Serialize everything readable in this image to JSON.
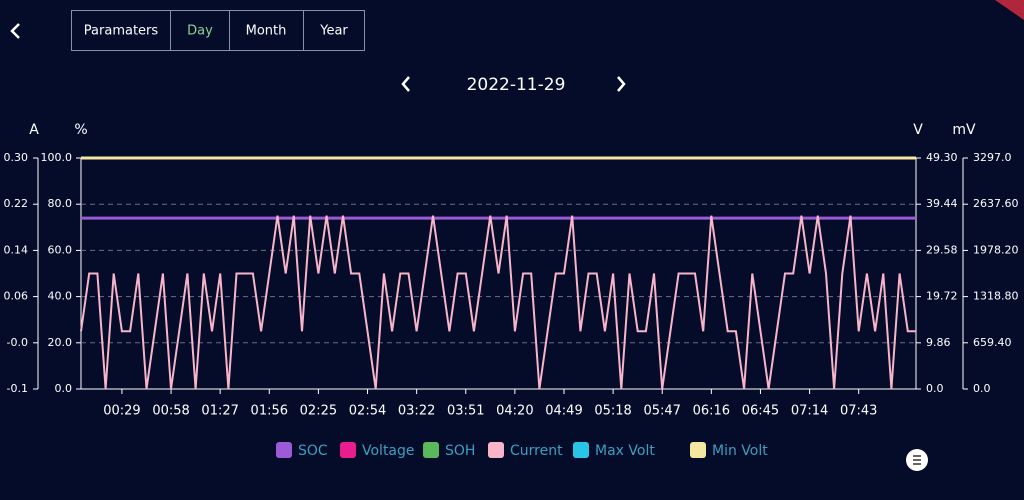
{
  "header": {
    "tabs": [
      "Paramaters",
      "Day",
      "Month",
      "Year"
    ],
    "date": "2022-11-29"
  },
  "chart_data": {
    "type": "line",
    "ylabel": "A",
    "y2label": "%",
    "y3label": "V",
    "y4label": "mV",
    "x": [
      null,
      null,
      null,
      null,
      null,
      "00:29",
      null,
      null,
      null,
      null,
      null,
      "00:58",
      null,
      null,
      null,
      null,
      null,
      "01:27",
      null,
      null,
      null,
      null,
      null,
      "01:56",
      null,
      null,
      null,
      null,
      null,
      "02:25",
      null,
      null,
      null,
      null,
      null,
      "02:54",
      null,
      null,
      null,
      null,
      null,
      "03:22",
      null,
      null,
      null,
      null,
      null,
      "03:51",
      null,
      null,
      null,
      null,
      null,
      "04:20",
      null,
      null,
      null,
      null,
      null,
      "04:49",
      null,
      null,
      null,
      null,
      null,
      "05:18",
      null,
      null,
      null,
      null,
      null,
      "05:47",
      null,
      null,
      null,
      null,
      null,
      "06:16",
      null,
      null,
      null,
      null,
      null,
      "06:45",
      null,
      null,
      null,
      null,
      null,
      "07:14",
      null,
      null,
      null,
      null,
      null,
      "07:43",
      null,
      null,
      null,
      null,
      null,
      null,
      null
    ],
    "series": [
      {
        "name": "SOC",
        "color": "#9b5bd6",
        "axis": "y2",
        "values": [
          74,
          74,
          74,
          74,
          74,
          74,
          74,
          74,
          74,
          74,
          74,
          74,
          74,
          74,
          74,
          74,
          74,
          74,
          74,
          74,
          74,
          74,
          74,
          74,
          74,
          74,
          74,
          74,
          74,
          74,
          74,
          74,
          74,
          74,
          74,
          74,
          74,
          74,
          74,
          74,
          74,
          74,
          74,
          74,
          74,
          74,
          74,
          74,
          74,
          74,
          74,
          74,
          74,
          74,
          74,
          74,
          74,
          74,
          74,
          74,
          74,
          74,
          74,
          74,
          74,
          74,
          74,
          74,
          74,
          74,
          74,
          74,
          74,
          74,
          74,
          74,
          74,
          74,
          74,
          74,
          74,
          74,
          74,
          74,
          74,
          74,
          74,
          74,
          74,
          74,
          74,
          74,
          74,
          74,
          74,
          74,
          74,
          74,
          74,
          74,
          74,
          74,
          74
        ]
      },
      {
        "name": "Voltage",
        "color": "#e91e8c",
        "axis": "y3",
        "values": [
          null,
          null,
          null,
          null,
          null,
          null,
          null,
          null,
          null,
          null,
          null,
          null,
          null,
          null,
          null,
          null,
          null,
          null,
          null,
          null,
          null,
          null,
          null,
          null,
          null,
          null,
          null,
          null,
          null,
          null,
          null,
          null,
          null,
          null,
          null,
          null,
          null,
          null,
          null,
          null,
          null,
          null,
          null,
          null,
          null,
          null,
          null,
          null,
          null,
          null,
          null,
          null,
          null,
          null,
          null,
          null,
          null,
          null,
          null,
          null,
          null,
          null,
          null,
          null,
          null,
          null,
          null,
          null,
          null,
          null,
          null,
          null,
          null,
          null,
          null,
          null,
          null,
          null,
          null,
          null,
          null,
          null,
          null,
          null,
          null,
          null,
          null,
          null,
          null,
          null,
          null,
          null,
          null,
          null,
          null,
          null,
          null,
          null,
          null,
          null,
          null,
          null,
          null
        ]
      },
      {
        "name": "SOH",
        "color": "#5cb85c",
        "axis": "y2",
        "values": [
          100,
          100,
          100,
          100,
          100,
          100,
          100,
          100,
          100,
          100,
          100,
          100,
          100,
          100,
          100,
          100,
          100,
          100,
          100,
          100,
          100,
          100,
          100,
          100,
          100,
          100,
          100,
          100,
          100,
          100,
          100,
          100,
          100,
          100,
          100,
          100,
          100,
          100,
          100,
          100,
          100,
          100,
          100,
          100,
          100,
          100,
          100,
          100,
          100,
          100,
          100,
          100,
          100,
          100,
          100,
          100,
          100,
          100,
          100,
          100,
          100,
          100,
          100,
          100,
          100,
          100,
          100,
          100,
          100,
          100,
          100,
          100,
          100,
          100,
          100,
          100,
          100,
          100,
          100,
          100,
          100,
          100,
          100,
          100,
          100,
          100,
          100,
          100,
          100,
          100,
          100,
          100,
          100,
          100,
          100,
          100,
          100,
          100,
          100,
          100,
          100,
          100,
          100
        ]
      },
      {
        "name": "Current",
        "color": "#f8b4c8",
        "axis": "y",
        "values": [
          0,
          0.1,
          0.1,
          -0.1,
          0.1,
          0,
          0,
          0.1,
          -0.1,
          0,
          0.1,
          -0.1,
          0,
          0.1,
          -0.1,
          0.1,
          0,
          0.1,
          -0.1,
          0.1,
          0.1,
          0.1,
          0,
          0.1,
          0.2,
          0.1,
          0.2,
          0,
          0.2,
          0.1,
          0.2,
          0.1,
          0.2,
          0.1,
          0.1,
          0,
          -0.1,
          0.1,
          0,
          0.1,
          0.1,
          0,
          0.1,
          0.2,
          0.1,
          0,
          0.1,
          0.1,
          0,
          0.1,
          0.2,
          0.1,
          0.2,
          0,
          0.1,
          0.1,
          -0.1,
          0,
          0.1,
          0.1,
          0.2,
          0,
          0.1,
          0.1,
          0,
          0.1,
          -0.1,
          0.1,
          0,
          0,
          0.1,
          -0.1,
          0,
          0.1,
          0.1,
          0.1,
          0,
          0.2,
          0.1,
          0,
          0,
          -0.1,
          0.1,
          0,
          -0.1,
          0,
          0.1,
          0.1,
          0.2,
          0.1,
          0.2,
          0.1,
          -0.1,
          0.1,
          0.2,
          0,
          0.1,
          0,
          0.1,
          -0.1,
          0.1,
          0,
          0
        ]
      },
      {
        "name": "Max Volt",
        "color": "#29c5e6",
        "axis": "y4",
        "values": [
          null,
          null,
          null,
          null,
          null,
          null,
          null,
          null,
          null,
          null,
          null,
          null,
          null,
          null,
          null,
          null,
          null,
          null,
          null,
          null,
          null,
          null,
          null,
          null,
          null,
          null,
          null,
          null,
          null,
          null,
          null,
          null,
          null,
          null,
          null,
          null,
          null,
          null,
          null,
          null,
          null,
          null,
          null,
          null,
          null,
          null,
          null,
          null,
          null,
          null,
          null,
          null,
          null,
          null,
          null,
          null,
          null,
          null,
          null,
          null,
          null,
          null,
          null,
          null,
          null,
          null,
          null,
          null,
          null,
          null,
          null,
          null,
          null,
          null,
          null,
          null,
          null,
          null,
          null,
          null,
          null,
          null,
          null,
          null,
          null,
          null,
          null,
          null,
          null,
          null,
          null,
          null,
          null,
          null,
          null,
          null,
          null,
          null,
          null,
          null,
          null,
          null,
          null
        ]
      },
      {
        "name": "Min Volt",
        "color": "#f5e6a0",
        "axis": "y4",
        "values": [
          3297,
          3297,
          3297,
          3297,
          3297,
          3297,
          3297,
          3297,
          3297,
          3297,
          3297,
          3297,
          3297,
          3297,
          3297,
          3297,
          3297,
          3297,
          3297,
          3297,
          3297,
          3297,
          3297,
          3297,
          3297,
          3297,
          3297,
          3297,
          3297,
          3297,
          3297,
          3297,
          3297,
          3297,
          3297,
          3297,
          3297,
          3297,
          3297,
          3297,
          3297,
          3297,
          3297,
          3297,
          3297,
          3297,
          3297,
          3297,
          3297,
          3297,
          3297,
          3297,
          3297,
          3297,
          3297,
          3297,
          3297,
          3297,
          3297,
          3297,
          3297,
          3297,
          3297,
          3297,
          3297,
          3297,
          3297,
          3297,
          3297,
          3297,
          3297,
          3297,
          3297,
          3297,
          3297,
          3297,
          3297,
          3297,
          3297,
          3297,
          3297,
          3297,
          3297,
          3297,
          3297,
          3297,
          3297,
          3297,
          3297,
          3297,
          3297,
          3297,
          3297,
          3297,
          3297,
          3297,
          3297,
          3297,
          3297,
          3297,
          3297,
          3297,
          3297
        ]
      }
    ],
    "ylim": [
      -0.1,
      0.3
    ],
    "yticks": [
      {
        "value": 0.3,
        "label": "0.30"
      },
      0.22,
      0.14,
      0.06,
      {
        "value": -0.02,
        "label": "-0.0"
      },
      -0.1
    ],
    "y2lim": [
      0,
      100
    ],
    "y2ticks": [
      {
        "value": 100,
        "label": "100.0"
      },
      {
        "value": 80,
        "label": "80.0"
      },
      {
        "value": 60,
        "label": "60.0"
      },
      {
        "value": 40,
        "label": "40.0"
      },
      {
        "value": 20,
        "label": "20.0"
      },
      {
        "value": 0,
        "label": "0.0"
      }
    ],
    "y3lim": [
      0,
      49.3
    ],
    "y3ticks": [
      {
        "value": 49.3,
        "label": "49.30"
      },
      39.44,
      29.58,
      19.72,
      9.86,
      {
        "value": 0,
        "label": "0.0"
      }
    ],
    "y4lim": [
      0,
      3297
    ],
    "y4ticks": [
      {
        "value": 3297,
        "label": "3297.0"
      },
      {
        "value": 2637.6,
        "label": "2637.60"
      },
      {
        "value": 1978.2,
        "label": "1978.20"
      },
      {
        "value": 1318.8,
        "label": "1318.80"
      },
      {
        "value": 659.4,
        "label": "659.40"
      },
      {
        "value": 0,
        "label": "0.0"
      }
    ],
    "grid": true
  }
}
